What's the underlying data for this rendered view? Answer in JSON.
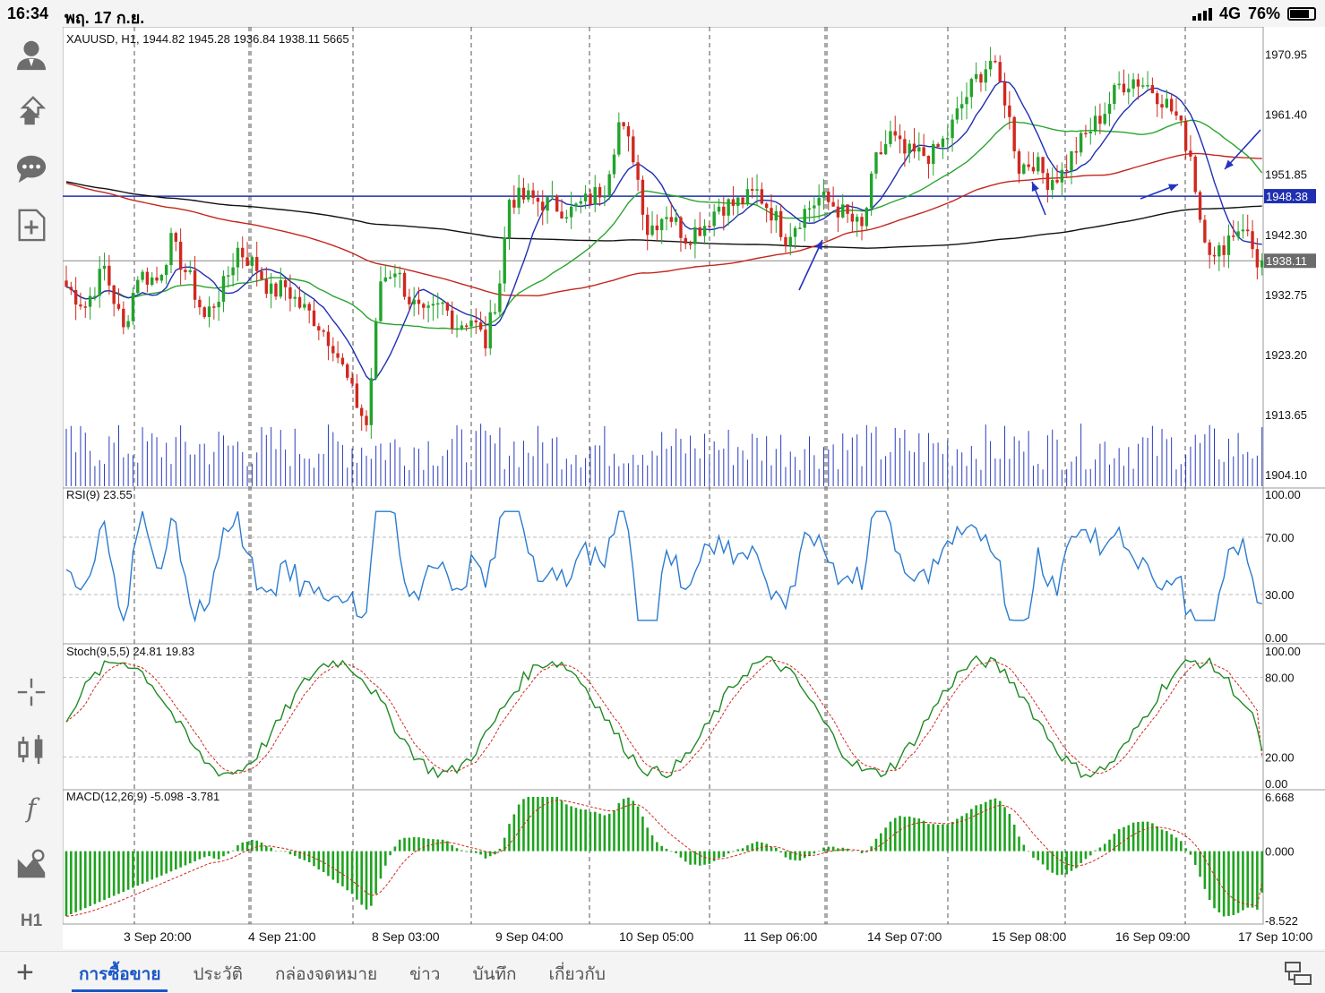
{
  "status": {
    "time": "16:34",
    "date": "พฤ. 17 ก.ย.",
    "network": "4G",
    "battery": "76%",
    "battery_level": 0.76
  },
  "symbol_info": "XAUUSD, H1, 1944.82 1945.28 1936.84 1938.11 5665",
  "price_scale": [
    "1970.95",
    "1961.40",
    "1951.85",
    "1942.30",
    "1932.75",
    "1923.20",
    "1913.65",
    "1904.10"
  ],
  "price_tags": {
    "hline": "1948.38",
    "last": "1938.11"
  },
  "time_labels": [
    "3 Sep 20:00",
    "4 Sep 21:00",
    "8 Sep 03:00",
    "9 Sep 04:00",
    "10 Sep 05:00",
    "11 Sep 06:00",
    "14 Sep 07:00",
    "15 Sep 08:00",
    "16 Sep 09:00",
    "17 Sep 10:00"
  ],
  "rsi": {
    "label": "RSI(9) 23.55",
    "scale": [
      "100.00",
      "70.00",
      "30.00",
      "0.00"
    ]
  },
  "stoch": {
    "label": "Stoch(9,5,5) 24.81 19.83",
    "scale": [
      "100.00",
      "80.00",
      "20.00",
      "0.00"
    ]
  },
  "macd": {
    "label": "MACD(12,26,9) -5.098 -3.781",
    "scale": [
      "6.668",
      "0.000",
      "-8.522"
    ]
  },
  "sidebar": {
    "icons": [
      "account-icon",
      "trade-arrows-icon",
      "chat-icon",
      "new-document-icon",
      "crosshair-icon",
      "chart-type-icon",
      "indicator-icon",
      "objects-icon"
    ],
    "timeframe": "H1"
  },
  "tabs": [
    "การซื้อขาย",
    "ประวัติ",
    "กล่องจดหมาย",
    "ข่าว",
    "บันทึก",
    "เกี่ยวกับ"
  ],
  "colors": {
    "bull": "#22a32b",
    "bear": "#d0281f",
    "ma_blue": "#1f2fb0",
    "ma_green": "#2aa52f",
    "ma_red": "#c4261c",
    "ma_black": "#111111",
    "hline": "#1f2fb0",
    "tab_active": "#1a56c8"
  },
  "chart_data": {
    "type": "candlestick",
    "symbol": "XAUUSD",
    "timeframe": "H1",
    "ohlc_last": {
      "open": 1944.82,
      "high": 1945.28,
      "low": 1936.84,
      "close": 1938.11,
      "volume": 5665
    },
    "y_range": [
      1902,
      1975
    ],
    "horizontal_line": 1948.38,
    "close_path": [
      [
        0,
        1934
      ],
      [
        4,
        1931
      ],
      [
        8,
        1937
      ],
      [
        12,
        1927
      ],
      [
        15,
        1936
      ],
      [
        19,
        1935
      ],
      [
        22,
        1941
      ],
      [
        26,
        1935
      ],
      [
        29,
        1929
      ],
      [
        33,
        1934
      ],
      [
        36,
        1940
      ],
      [
        40,
        1937
      ],
      [
        43,
        1933
      ],
      [
        46,
        1934
      ],
      [
        49,
        1931
      ],
      [
        52,
        1929
      ],
      [
        56,
        1925
      ],
      [
        60,
        1917
      ],
      [
        63,
        1912
      ],
      [
        66,
        1935
      ],
      [
        69,
        1937
      ],
      [
        72,
        1932
      ],
      [
        75,
        1929
      ],
      [
        79,
        1931
      ],
      [
        82,
        1928
      ],
      [
        85,
        1929
      ],
      [
        88,
        1925
      ],
      [
        91,
        1935
      ],
      [
        93,
        1948
      ],
      [
        97,
        1948
      ],
      [
        102,
        1947
      ],
      [
        106,
        1946
      ],
      [
        110,
        1948
      ],
      [
        113,
        1950
      ],
      [
        116,
        1960
      ],
      [
        119,
        1955
      ],
      [
        122,
        1943
      ],
      [
        126,
        1946
      ],
      [
        130,
        1942
      ],
      [
        134,
        1944
      ],
      [
        137,
        1947
      ],
      [
        140,
        1947
      ],
      [
        143,
        1948
      ],
      [
        145,
        1949
      ],
      [
        148,
        1946
      ],
      [
        151,
        1942
      ],
      [
        155,
        1946
      ],
      [
        158,
        1948
      ],
      [
        161,
        1947
      ],
      [
        164,
        1945
      ],
      [
        167,
        1943
      ],
      [
        170,
        1954
      ],
      [
        173,
        1958
      ],
      [
        176,
        1955
      ],
      [
        179,
        1955
      ],
      [
        182,
        1955
      ],
      [
        185,
        1958
      ],
      [
        188,
        1963
      ],
      [
        191,
        1967
      ],
      [
        194,
        1970
      ],
      [
        197,
        1964
      ],
      [
        200,
        1953
      ],
      [
        203,
        1954
      ],
      [
        206,
        1951
      ],
      [
        209,
        1952
      ],
      [
        212,
        1956
      ],
      [
        215,
        1959
      ],
      [
        218,
        1962
      ],
      [
        221,
        1966
      ],
      [
        224,
        1967
      ],
      [
        227,
        1966
      ],
      [
        230,
        1964
      ],
      [
        233,
        1961
      ],
      [
        236,
        1955
      ],
      [
        238,
        1945
      ],
      [
        241,
        1938
      ],
      [
        244,
        1942
      ],
      [
        247,
        1944
      ],
      [
        250,
        1938
      ]
    ],
    "rsi_last": 23.55,
    "stoch_last": {
      "k": 24.81,
      "d": 19.83
    },
    "macd_last": {
      "macd": -5.098,
      "signal": -3.781
    },
    "macd_range": [
      -8.522,
      6.668
    ]
  }
}
